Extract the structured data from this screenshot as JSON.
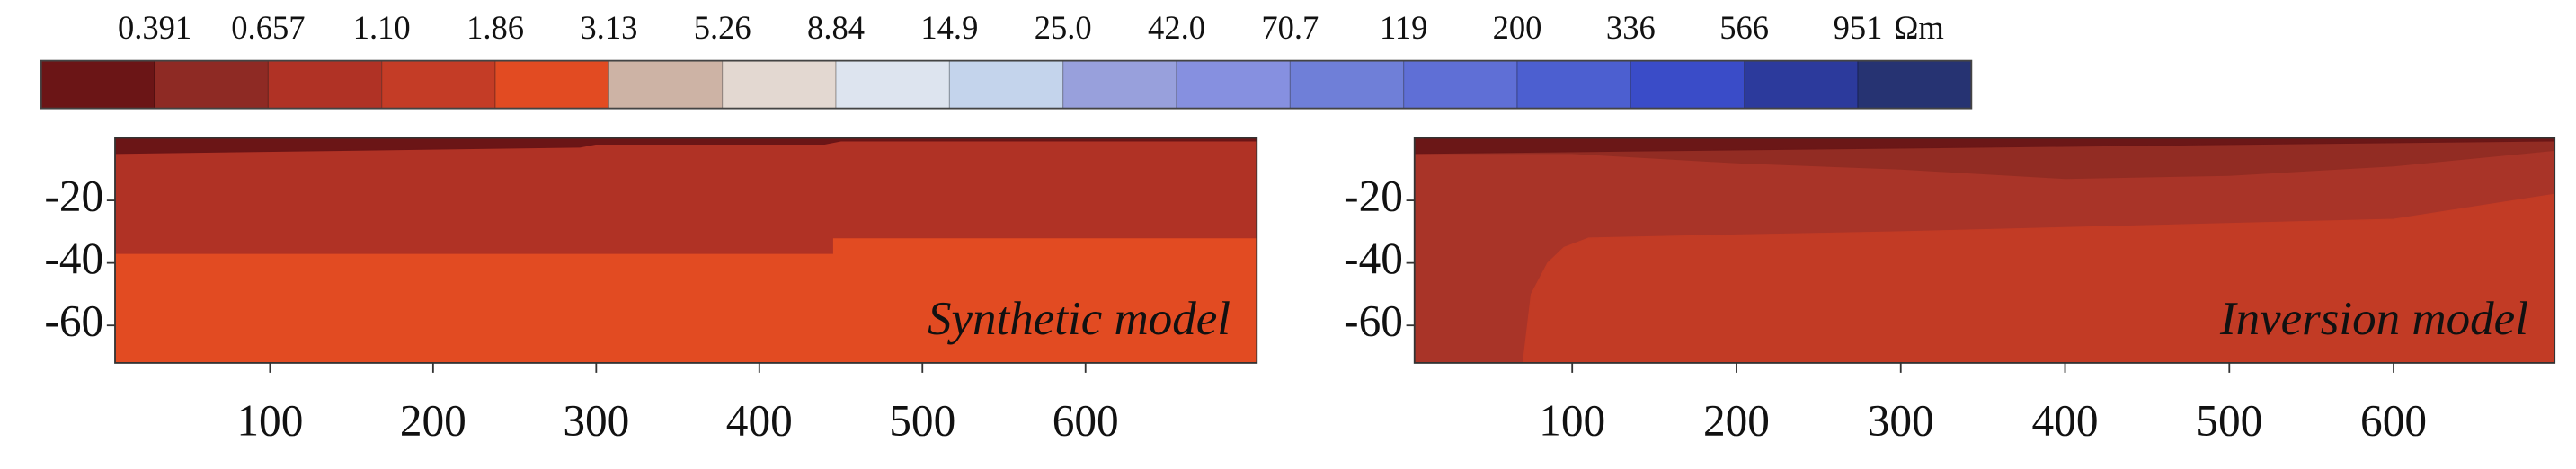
{
  "colorbar": {
    "ticks": [
      0.391,
      0.657,
      {
        "value": 1.1,
        "label": "1.10"
      },
      1.86,
      3.13,
      5.26,
      8.84,
      14.9,
      {
        "value": 25,
        "label": "25.0"
      },
      {
        "value": 42,
        "label": "42.0"
      },
      70.7,
      119,
      200,
      336,
      566,
      951
    ],
    "unit": "Ωm",
    "colors": [
      "#6b1516",
      "#8e2a24",
      "#b03225",
      "#c43c26",
      "#e24b22",
      "#cdb3a5",
      "#e3d8d1",
      "#dde4ef",
      "#c4d4ec",
      "#98a0dc",
      "#8690e0",
      "#6f7fd8",
      "#5f6fd6",
      "#4c5fd0",
      "#3a4cc8",
      "#2c3a9c",
      "#263372"
    ]
  },
  "chart_data": [
    {
      "type": "heatmap",
      "annotation": "Synthetic model",
      "xlim": [
        5,
        705
      ],
      "ylim": [
        -72,
        0
      ],
      "xticks": [
        100,
        200,
        300,
        400,
        500,
        600
      ],
      "yticks": [
        -20,
        -40,
        -60
      ],
      "regions": [
        {
          "color": "#e24b22",
          "x": [
            5,
            705,
            705,
            5
          ],
          "y": [
            0,
            0,
            -72,
            -72
          ]
        },
        {
          "color": "#b03225",
          "x": [
            5,
            705,
            705,
            445,
            445,
            5
          ],
          "y": [
            0,
            0,
            -32,
            -32,
            -37,
            -37
          ]
        },
        {
          "color": "#6b1516",
          "x": [
            5,
            705,
            705,
            450,
            440,
            300,
            290,
            5
          ],
          "y": [
            0,
            0,
            -1,
            -1,
            -2,
            -2,
            -3,
            -5
          ]
        }
      ]
    },
    {
      "type": "heatmap",
      "annotation": "Inversion model",
      "xlim": [
        4,
        698
      ],
      "ylim": [
        -72,
        0
      ],
      "xticks": [
        100,
        200,
        300,
        400,
        500,
        600
      ],
      "yticks": [
        -20,
        -40,
        -60
      ],
      "regions": [
        {
          "color": "#a93428",
          "x": [
            4,
            698,
            698,
            4
          ],
          "y": [
            0,
            0,
            -72,
            -72
          ]
        },
        {
          "color": "#c23b25",
          "x": [
            70,
            75,
            85,
            95,
            110,
            200,
            300,
            450,
            600,
            698,
            698,
            70
          ],
          "y": [
            -72,
            -50,
            -40,
            -35,
            -32,
            -31,
            -30,
            -28,
            -26,
            -18,
            -72,
            -72
          ]
        },
        {
          "color": "#922c23",
          "x": [
            4,
            698,
            698,
            600,
            500,
            400,
            300,
            200,
            100,
            4
          ],
          "y": [
            0,
            0,
            -4,
            -9,
            -12,
            -13,
            -10,
            -8,
            -5,
            -5
          ]
        },
        {
          "color": "#6b1717",
          "x": [
            4,
            698,
            698,
            4
          ],
          "y": [
            0,
            0,
            -1,
            -5
          ]
        }
      ]
    }
  ]
}
